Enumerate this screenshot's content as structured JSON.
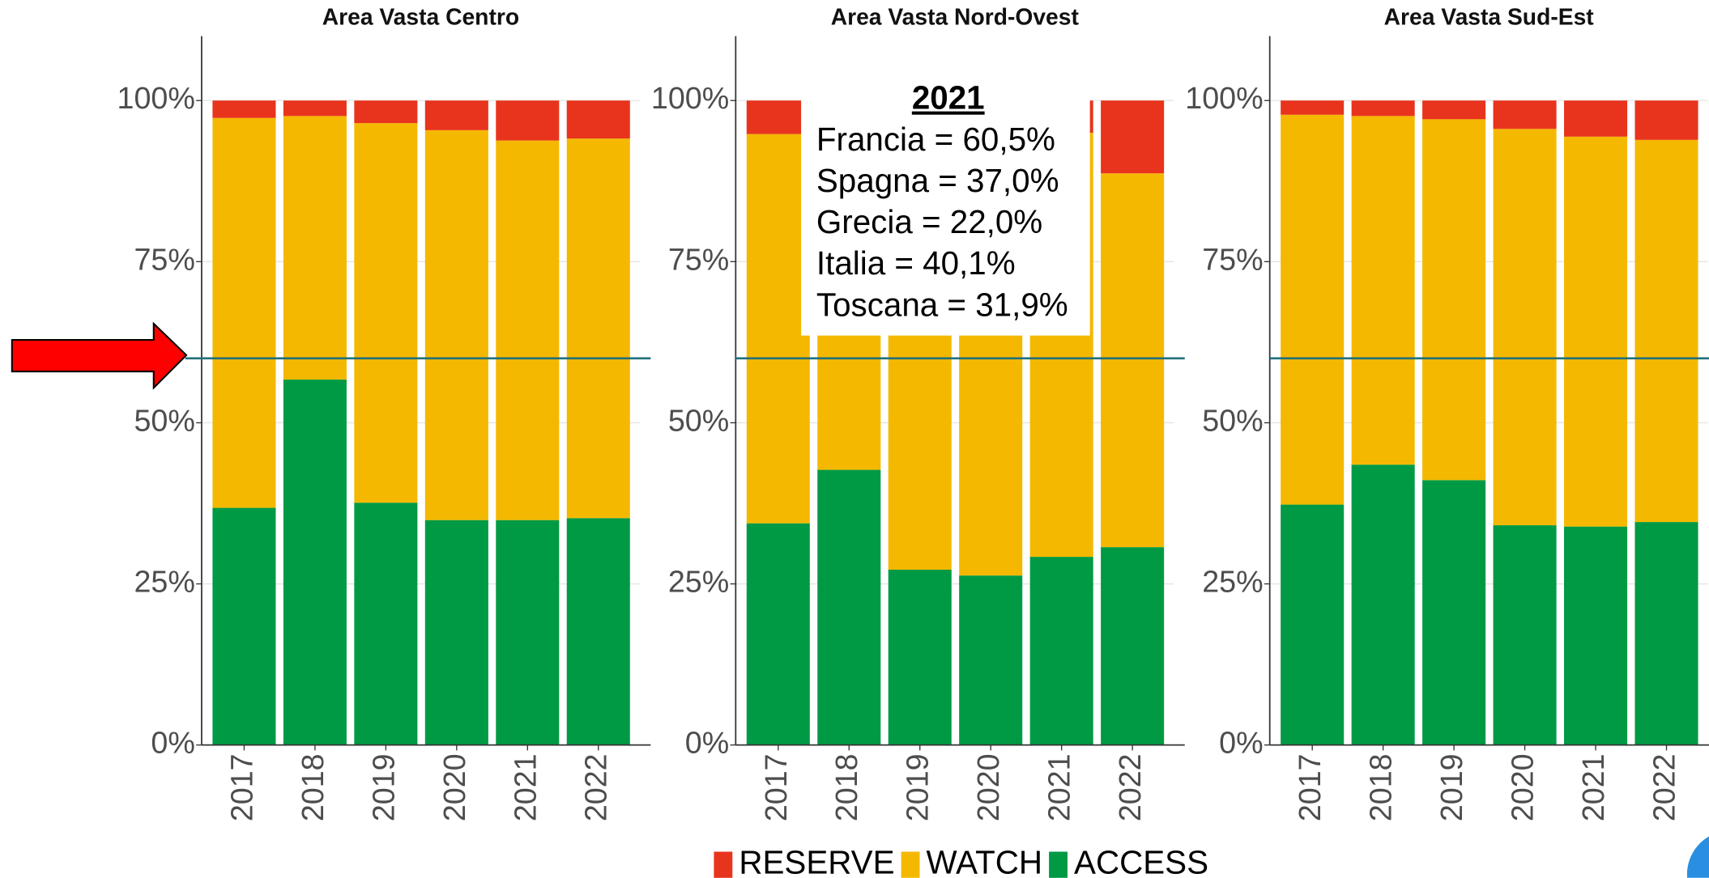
{
  "chart_data": [
    {
      "type": "bar",
      "stacked": true,
      "title": "Area Vasta Centro",
      "categories": [
        "2017",
        "2018",
        "2019",
        "2020",
        "2021",
        "2022"
      ],
      "series": [
        {
          "name": "ACCESS",
          "color": "#009a44",
          "values": [
            36.8,
            56.7,
            37.6,
            34.9,
            34.9,
            35.2
          ]
        },
        {
          "name": "WATCH",
          "color": "#f5b800",
          "values": [
            60.5,
            40.9,
            58.9,
            60.5,
            58.9,
            58.9
          ]
        },
        {
          "name": "RESERVE",
          "color": "#e8341c",
          "values": [
            2.7,
            2.4,
            3.5,
            4.6,
            6.2,
            5.9
          ]
        }
      ],
      "ylim": [
        0,
        110
      ],
      "yticks": [
        {
          "value": 0,
          "label": "0%"
        },
        {
          "value": 25,
          "label": "25%"
        },
        {
          "value": 50,
          "label": "50%"
        },
        {
          "value": 75,
          "label": "75%"
        },
        {
          "value": 100,
          "label": "100%"
        }
      ],
      "grid": true,
      "reference_line": 60
    },
    {
      "type": "bar",
      "stacked": true,
      "title": "Area Vasta Nord-Ovest",
      "categories": [
        "2017",
        "2018",
        "2019",
        "2020",
        "2021",
        "2022"
      ],
      "series": [
        {
          "name": "ACCESS",
          "color": "#009a44",
          "values": [
            34.4,
            42.7,
            27.2,
            26.3,
            29.2,
            30.7
          ]
        },
        {
          "name": "WATCH",
          "color": "#f5b800",
          "values": [
            60.4,
            54.3,
            68.8,
            69.7,
            65.8,
            58.0
          ]
        },
        {
          "name": "RESERVE",
          "color": "#e8341c",
          "values": [
            5.2,
            3.0,
            4.0,
            4.0,
            5.0,
            11.3
          ]
        }
      ],
      "ylim": [
        0,
        110
      ],
      "yticks": [
        {
          "value": 0,
          "label": "0%"
        },
        {
          "value": 25,
          "label": "25%"
        },
        {
          "value": 50,
          "label": "50%"
        },
        {
          "value": 75,
          "label": "75%"
        },
        {
          "value": 100,
          "label": "100%"
        }
      ],
      "grid": true,
      "reference_line": 60,
      "annotation": {
        "title": "2021",
        "lines": [
          "Francia = 60,5%",
          "Spagna = 37,0%",
          "Grecia = 22,0%",
          "Italia = 40,1%",
          "Toscana = 31,9%"
        ]
      }
    },
    {
      "type": "bar",
      "stacked": true,
      "title": "Area Vasta Sud-Est",
      "categories": [
        "2017",
        "2018",
        "2019",
        "2020",
        "2021",
        "2022"
      ],
      "series": [
        {
          "name": "ACCESS",
          "color": "#009a44",
          "values": [
            37.3,
            43.5,
            41.1,
            34.1,
            33.9,
            34.6
          ]
        },
        {
          "name": "WATCH",
          "color": "#f5b800",
          "values": [
            60.5,
            54.1,
            56.0,
            61.5,
            60.5,
            59.3
          ]
        },
        {
          "name": "RESERVE",
          "color": "#e8341c",
          "values": [
            2.2,
            2.4,
            2.9,
            4.4,
            5.6,
            6.1
          ]
        }
      ],
      "ylim": [
        0,
        110
      ],
      "yticks": [
        {
          "value": 0,
          "label": "0%"
        },
        {
          "value": 25,
          "label": "25%"
        },
        {
          "value": 50,
          "label": "50%"
        },
        {
          "value": 75,
          "label": "75%"
        },
        {
          "value": 100,
          "label": "100%"
        }
      ],
      "grid": true,
      "reference_line": 60
    }
  ],
  "legend": {
    "position": "bottom",
    "order": [
      2,
      1,
      0
    ]
  }
}
